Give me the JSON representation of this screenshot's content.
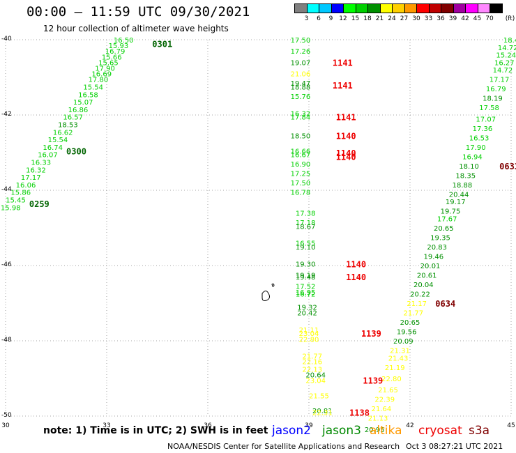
{
  "header": {
    "title": "00:00 – 11:59 UTC 09/30/2021",
    "subtitle": "12 hour collection of altimeter wave heights"
  },
  "colorbar": {
    "unit": "(ft)",
    "colors": [
      "#808080",
      "#00ffff",
      "#00c8ff",
      "#0000ff",
      "#00ff00",
      "#00d000",
      "#009000",
      "#ffff00",
      "#ffd000",
      "#ff9900",
      "#ff0000",
      "#c00000",
      "#800000",
      "#a000a0",
      "#ff00ff",
      "#ff88ff",
      "#000000"
    ],
    "labels": [
      "3",
      "6",
      "9",
      "12",
      "15",
      "18",
      "21",
      "24",
      "27",
      "30",
      "33",
      "36",
      "39",
      "42",
      "45",
      "70"
    ]
  },
  "axes": {
    "lat_labels": [
      "-40",
      "-42",
      "-44",
      "-46",
      "-48",
      "-50"
    ],
    "lon_labels": [
      "30",
      "33",
      "36",
      "39",
      "42",
      "45"
    ]
  },
  "tracks": [
    {
      "name": "left-track",
      "points": [
        {
          "lon": 33.5,
          "lat": -40.0,
          "v": "16.50",
          "c": "#00d000"
        },
        {
          "lon": 33.35,
          "lat": -40.15,
          "v": "15.93",
          "c": "#00d000"
        },
        {
          "lon": 33.25,
          "lat": -40.3,
          "v": "16.79",
          "c": "#00d000"
        },
        {
          "lon": 33.15,
          "lat": -40.45,
          "v": "15.66",
          "c": "#00d000"
        },
        {
          "lon": 33.05,
          "lat": -40.6,
          "v": "15.65",
          "c": "#00d000"
        },
        {
          "lon": 32.95,
          "lat": -40.75,
          "v": "17.90",
          "c": "#00d000"
        },
        {
          "lon": 32.85,
          "lat": -40.9,
          "v": "16.69",
          "c": "#00d000"
        },
        {
          "lon": 32.75,
          "lat": -41.05,
          "v": "17.80",
          "c": "#00d000"
        },
        {
          "lon": 32.6,
          "lat": -41.25,
          "v": "15.54",
          "c": "#00d000"
        },
        {
          "lon": 32.45,
          "lat": -41.45,
          "v": "16.58",
          "c": "#00d000"
        },
        {
          "lon": 32.3,
          "lat": -41.65,
          "v": "15.07",
          "c": "#00d000"
        },
        {
          "lon": 32.15,
          "lat": -41.85,
          "v": "16.86",
          "c": "#00d000"
        },
        {
          "lon": 32.0,
          "lat": -42.05,
          "v": "16.57",
          "c": "#00d000"
        },
        {
          "lon": 31.85,
          "lat": -42.25,
          "v": "18.53",
          "c": "#009000"
        },
        {
          "lon": 31.7,
          "lat": -42.45,
          "v": "16.62",
          "c": "#00d000"
        },
        {
          "lon": 31.55,
          "lat": -42.65,
          "v": "15.54",
          "c": "#00d000"
        },
        {
          "lon": 31.4,
          "lat": -42.85,
          "v": "16.74",
          "c": "#00d000"
        },
        {
          "lon": 31.25,
          "lat": -43.05,
          "v": "16.07",
          "c": "#00d000"
        },
        {
          "lon": 31.05,
          "lat": -43.25,
          "v": "16.33",
          "c": "#00d000"
        },
        {
          "lon": 30.9,
          "lat": -43.45,
          "v": "16.32",
          "c": "#00d000"
        },
        {
          "lon": 30.75,
          "lat": -43.65,
          "v": "17.17",
          "c": "#00d000"
        },
        {
          "lon": 30.6,
          "lat": -43.85,
          "v": "16.06",
          "c": "#00d000"
        },
        {
          "lon": 30.45,
          "lat": -44.05,
          "v": "15.86",
          "c": "#00d000"
        },
        {
          "lon": 30.3,
          "lat": -44.25,
          "v": "15.45",
          "c": "#00d000"
        },
        {
          "lon": 30.15,
          "lat": -44.45,
          "v": "15.98",
          "c": "#00d000"
        }
      ]
    },
    {
      "name": "middle-track",
      "points": [
        {
          "lon": 38.75,
          "lat": -40.0,
          "v": "17.50",
          "c": "#00d000"
        },
        {
          "lon": 38.75,
          "lat": -40.3,
          "v": "17.26",
          "c": "#00d000"
        },
        {
          "lon": 38.75,
          "lat": -40.6,
          "v": "19.07",
          "c": "#009000"
        },
        {
          "lon": 38.75,
          "lat": -40.9,
          "v": "21.06",
          "c": "#ffff00"
        },
        {
          "lon": 38.75,
          "lat": -41.15,
          "v": "19.47",
          "c": "#009000"
        },
        {
          "lon": 38.75,
          "lat": -41.25,
          "v": "18.88",
          "c": "#009000"
        },
        {
          "lon": 38.75,
          "lat": -41.5,
          "v": "15.76",
          "c": "#00d000"
        },
        {
          "lon": 38.75,
          "lat": -41.95,
          "v": "16.32",
          "c": "#00d000"
        },
        {
          "lon": 38.75,
          "lat": -42.05,
          "v": "17.84",
          "c": "#00d000"
        },
        {
          "lon": 38.75,
          "lat": -42.55,
          "v": "18.50",
          "c": "#009000"
        },
        {
          "lon": 38.75,
          "lat": -42.95,
          "v": "16.66",
          "c": "#00d000"
        },
        {
          "lon": 38.75,
          "lat": -43.05,
          "v": "16.67",
          "c": "#00d000"
        },
        {
          "lon": 38.75,
          "lat": -43.3,
          "v": "16.90",
          "c": "#00d000"
        },
        {
          "lon": 38.75,
          "lat": -43.55,
          "v": "17.25",
          "c": "#00d000"
        },
        {
          "lon": 38.75,
          "lat": -43.8,
          "v": "17.50",
          "c": "#00d000"
        },
        {
          "lon": 38.75,
          "lat": -44.05,
          "v": "16.78",
          "c": "#00d000"
        },
        {
          "lon": 38.9,
          "lat": -44.6,
          "v": "17.38",
          "c": "#00d000"
        },
        {
          "lon": 38.9,
          "lat": -44.85,
          "v": "17.18",
          "c": "#00d000"
        },
        {
          "lon": 38.9,
          "lat": -44.95,
          "v": "18.67",
          "c": "#009000"
        },
        {
          "lon": 38.9,
          "lat": -45.4,
          "v": "16.55",
          "c": "#00d000"
        },
        {
          "lon": 38.9,
          "lat": -45.5,
          "v": "19.10",
          "c": "#009000"
        },
        {
          "lon": 38.9,
          "lat": -45.95,
          "v": "19.30",
          "c": "#009000"
        },
        {
          "lon": 38.9,
          "lat": -46.25,
          "v": "19.19",
          "c": "#009000"
        },
        {
          "lon": 38.9,
          "lat": -46.3,
          "v": "19.48",
          "c": "#009000"
        },
        {
          "lon": 38.9,
          "lat": -46.55,
          "v": "17.52",
          "c": "#00d000"
        },
        {
          "lon": 38.9,
          "lat": -46.7,
          "v": "16.95",
          "c": "#00d000"
        },
        {
          "lon": 38.9,
          "lat": -46.75,
          "v": "16.72",
          "c": "#00d000"
        },
        {
          "lon": 38.95,
          "lat": -47.1,
          "v": "19.32",
          "c": "#009000"
        },
        {
          "lon": 38.95,
          "lat": -47.25,
          "v": "20.42",
          "c": "#009000"
        },
        {
          "lon": 39.0,
          "lat": -47.7,
          "v": "21.11",
          "c": "#ffff00"
        },
        {
          "lon": 39.0,
          "lat": -47.8,
          "v": "23.04",
          "c": "#ffff00"
        },
        {
          "lon": 39.0,
          "lat": -47.95,
          "v": "22.80",
          "c": "#ffff00"
        },
        {
          "lon": 39.1,
          "lat": -48.4,
          "v": "21.77",
          "c": "#ffff00"
        },
        {
          "lon": 39.1,
          "lat": -48.55,
          "v": "22.16",
          "c": "#ffff00"
        },
        {
          "lon": 39.1,
          "lat": -48.75,
          "v": "22.13",
          "c": "#ffff00"
        },
        {
          "lon": 39.2,
          "lat": -48.9,
          "v": "20.64",
          "c": "#009000"
        },
        {
          "lon": 39.2,
          "lat": -49.05,
          "v": "23.04",
          "c": "#ffff00"
        },
        {
          "lon": 39.3,
          "lat": -49.45,
          "v": "21.55",
          "c": "#ffff00"
        },
        {
          "lon": 39.4,
          "lat": -49.85,
          "v": "20.81",
          "c": "#009000"
        },
        {
          "lon": 39.4,
          "lat": -49.9,
          "v": "22.31",
          "c": "#ffff00"
        }
      ]
    },
    {
      "name": "right-track",
      "points": [
        {
          "lon": 45.0,
          "lat": -40.0,
          "v": "18.4",
          "c": "#00d000"
        },
        {
          "lon": 44.9,
          "lat": -40.2,
          "v": "14.72",
          "c": "#00d000"
        },
        {
          "lon": 44.85,
          "lat": -40.4,
          "v": "15.24",
          "c": "#00d000"
        },
        {
          "lon": 44.8,
          "lat": -40.6,
          "v": "16.27",
          "c": "#00d000"
        },
        {
          "lon": 44.75,
          "lat": -40.8,
          "v": "14.72",
          "c": "#00d000"
        },
        {
          "lon": 44.65,
          "lat": -41.05,
          "v": "17.17",
          "c": "#00d000"
        },
        {
          "lon": 44.55,
          "lat": -41.3,
          "v": "16.79",
          "c": "#00d000"
        },
        {
          "lon": 44.45,
          "lat": -41.55,
          "v": "18.19",
          "c": "#009000"
        },
        {
          "lon": 44.35,
          "lat": -41.8,
          "v": "17.58",
          "c": "#00d000"
        },
        {
          "lon": 44.25,
          "lat": -42.1,
          "v": "17.07",
          "c": "#00d000"
        },
        {
          "lon": 44.15,
          "lat": -42.35,
          "v": "17.36",
          "c": "#00d000"
        },
        {
          "lon": 44.05,
          "lat": -42.6,
          "v": "16.53",
          "c": "#00d000"
        },
        {
          "lon": 43.95,
          "lat": -42.85,
          "v": "17.90",
          "c": "#00d000"
        },
        {
          "lon": 43.85,
          "lat": -43.1,
          "v": "16.94",
          "c": "#00d000"
        },
        {
          "lon": 43.75,
          "lat": -43.35,
          "v": "18.10",
          "c": "#009000"
        },
        {
          "lon": 43.65,
          "lat": -43.6,
          "v": "18.35",
          "c": "#009000"
        },
        {
          "lon": 43.55,
          "lat": -43.85,
          "v": "18.88",
          "c": "#009000"
        },
        {
          "lon": 43.45,
          "lat": -44.1,
          "v": "20.44",
          "c": "#009000"
        },
        {
          "lon": 43.35,
          "lat": -44.3,
          "v": "19.17",
          "c": "#009000"
        },
        {
          "lon": 43.2,
          "lat": -44.55,
          "v": "19.75",
          "c": "#009000"
        },
        {
          "lon": 43.1,
          "lat": -44.75,
          "v": "17.67",
          "c": "#00d000"
        },
        {
          "lon": 43.0,
          "lat": -45.0,
          "v": "20.65",
          "c": "#009000"
        },
        {
          "lon": 42.9,
          "lat": -45.25,
          "v": "19.35",
          "c": "#009000"
        },
        {
          "lon": 42.8,
          "lat": -45.5,
          "v": "20.83",
          "c": "#009000"
        },
        {
          "lon": 42.7,
          "lat": -45.75,
          "v": "19.46",
          "c": "#009000"
        },
        {
          "lon": 42.6,
          "lat": -46.0,
          "v": "20.01",
          "c": "#009000"
        },
        {
          "lon": 42.5,
          "lat": -46.25,
          "v": "20.61",
          "c": "#009000"
        },
        {
          "lon": 42.4,
          "lat": -46.5,
          "v": "20.04",
          "c": "#009000"
        },
        {
          "lon": 42.3,
          "lat": -46.75,
          "v": "20.22",
          "c": "#009000"
        },
        {
          "lon": 42.2,
          "lat": -47.0,
          "v": "21.17",
          "c": "#ffff00"
        },
        {
          "lon": 42.1,
          "lat": -47.25,
          "v": "21.77",
          "c": "#ffff00"
        },
        {
          "lon": 42.0,
          "lat": -47.5,
          "v": "20.65",
          "c": "#009000"
        },
        {
          "lon": 41.9,
          "lat": -47.75,
          "v": "19.56",
          "c": "#009000"
        },
        {
          "lon": 41.8,
          "lat": -48.0,
          "v": "20.09",
          "c": "#009000"
        },
        {
          "lon": 41.7,
          "lat": -48.25,
          "v": "21.31",
          "c": "#ffff00"
        },
        {
          "lon": 41.65,
          "lat": -48.45,
          "v": "21.43",
          "c": "#ffff00"
        },
        {
          "lon": 41.55,
          "lat": -48.7,
          "v": "21.19",
          "c": "#ffff00"
        },
        {
          "lon": 41.45,
          "lat": -49.0,
          "v": "22.80",
          "c": "#ffff00"
        },
        {
          "lon": 41.35,
          "lat": -49.3,
          "v": "21.65",
          "c": "#ffff00"
        },
        {
          "lon": 41.25,
          "lat": -49.55,
          "v": "22.39",
          "c": "#ffff00"
        },
        {
          "lon": 41.15,
          "lat": -49.8,
          "v": "21.64",
          "c": "#ffff00"
        },
        {
          "lon": 41.05,
          "lat": -50.05,
          "v": "21.13",
          "c": "#ffff00"
        },
        {
          "lon": 40.95,
          "lat": -50.35,
          "v": "20.95",
          "c": "#009000"
        }
      ]
    }
  ],
  "time_labels": [
    {
      "lon": 34.65,
      "lat": -40.1,
      "v": "0301",
      "c": "#006400"
    },
    {
      "lon": 32.1,
      "lat": -42.95,
      "v": "0300",
      "c": "#006400"
    },
    {
      "lon": 31.0,
      "lat": -44.35,
      "v": "0259",
      "c": "#006400"
    },
    {
      "lon": 40.0,
      "lat": -40.6,
      "v": "1141",
      "c": "#ee0000"
    },
    {
      "lon": 40.0,
      "lat": -41.2,
      "v": "1141",
      "c": "#ee0000"
    },
    {
      "lon": 40.1,
      "lat": -42.05,
      "v": "1141",
      "c": "#ee0000"
    },
    {
      "lon": 40.1,
      "lat": -42.55,
      "v": "1140",
      "c": "#ee0000"
    },
    {
      "lon": 40.1,
      "lat": -43.0,
      "v": "1140",
      "c": "#ee0000"
    },
    {
      "lon": 40.1,
      "lat": -43.1,
      "v": "1140",
      "c": "#ee0000"
    },
    {
      "lon": 40.4,
      "lat": -45.95,
      "v": "1140",
      "c": "#ee0000"
    },
    {
      "lon": 40.4,
      "lat": -46.3,
      "v": "1140",
      "c": "#ee0000"
    },
    {
      "lon": 40.85,
      "lat": -47.8,
      "v": "1139",
      "c": "#ee0000"
    },
    {
      "lon": 40.9,
      "lat": -49.05,
      "v": "1139",
      "c": "#ee0000"
    },
    {
      "lon": 40.5,
      "lat": -49.9,
      "v": "1138",
      "c": "#ee0000"
    },
    {
      "lon": 44.95,
      "lat": -43.35,
      "v": "0633",
      "c": "#800000"
    },
    {
      "lon": 43.05,
      "lat": -47.0,
      "v": "0634",
      "c": "#800000"
    }
  ],
  "notes": {
    "text": "note:  1) Time is in UTC; 2) SWH is in feet"
  },
  "legend": [
    {
      "label": "jason2",
      "color": "#0000ff"
    },
    {
      "label": "jason3",
      "color": "#008800"
    },
    {
      "label": "altika",
      "color": "#ff9900"
    },
    {
      "label": "cryosat",
      "color": "#ee0000"
    },
    {
      "label": "s3a",
      "color": "#800000"
    }
  ],
  "footer": {
    "agency": "NOAA/NESDIS Center for Satellite Applications and Research",
    "timestamp": "Oct  3 08:27:21 UTC 2021"
  }
}
